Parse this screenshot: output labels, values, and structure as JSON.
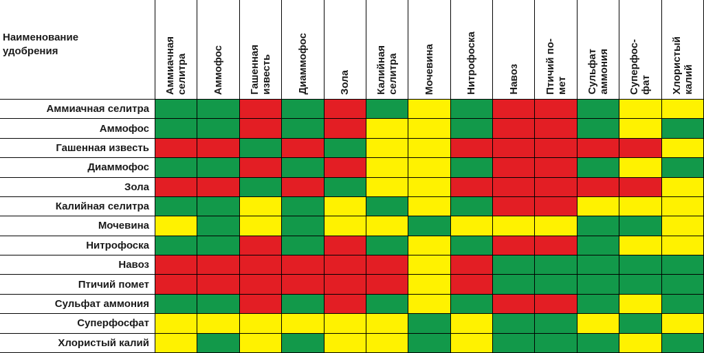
{
  "title_lines": [
    "Наименование",
    "удобрения"
  ],
  "columns": [
    "Аммиачная\nселитра",
    "Аммофос",
    "Гашенная\nизвесть",
    "Диаммофос",
    "Зола",
    "Калийная\nселитра",
    "Мочевина",
    "Нитрофоска",
    "Навоз",
    "Птичий по-\nмет",
    "Сульфат\nаммония",
    "Суперфос-\nфат",
    "Хлористый\nкалий"
  ],
  "rows": [
    "Аммиачная селитра",
    "Аммофос",
    "Гашенная известь",
    "Диаммофос",
    "Зола",
    "Калийная селитра",
    "Мочевина",
    "Нитрофоска",
    "Навоз",
    "Птичий помет",
    "Сульфат аммония",
    "Суперфосфат",
    "Хлористый калий"
  ],
  "colors": {
    "G": "#12994a",
    "R": "#e31e24",
    "Y": "#fff200"
  },
  "matrix": [
    [
      "G",
      "G",
      "R",
      "G",
      "R",
      "G",
      "Y",
      "G",
      "R",
      "R",
      "G",
      "Y",
      "Y"
    ],
    [
      "G",
      "G",
      "R",
      "G",
      "R",
      "Y",
      "Y",
      "G",
      "R",
      "R",
      "G",
      "Y",
      "G"
    ],
    [
      "R",
      "R",
      "G",
      "R",
      "G",
      "Y",
      "Y",
      "R",
      "R",
      "R",
      "R",
      "R",
      "Y"
    ],
    [
      "G",
      "G",
      "R",
      "G",
      "R",
      "Y",
      "Y",
      "G",
      "R",
      "R",
      "G",
      "Y",
      "G"
    ],
    [
      "R",
      "R",
      "G",
      "R",
      "G",
      "Y",
      "Y",
      "R",
      "R",
      "R",
      "R",
      "R",
      "Y"
    ],
    [
      "G",
      "G",
      "Y",
      "G",
      "Y",
      "G",
      "Y",
      "G",
      "R",
      "R",
      "Y",
      "Y",
      "Y"
    ],
    [
      "Y",
      "G",
      "Y",
      "G",
      "Y",
      "Y",
      "G",
      "Y",
      "Y",
      "Y",
      "G",
      "G",
      "Y"
    ],
    [
      "G",
      "G",
      "R",
      "G",
      "R",
      "G",
      "Y",
      "G",
      "R",
      "R",
      "G",
      "Y",
      "Y"
    ],
    [
      "R",
      "R",
      "R",
      "R",
      "R",
      "R",
      "Y",
      "R",
      "G",
      "G",
      "G",
      "G",
      "G"
    ],
    [
      "R",
      "R",
      "R",
      "R",
      "R",
      "R",
      "Y",
      "R",
      "G",
      "G",
      "G",
      "G",
      "G"
    ],
    [
      "G",
      "G",
      "R",
      "G",
      "R",
      "G",
      "Y",
      "G",
      "R",
      "R",
      "G",
      "Y",
      "G"
    ],
    [
      "Y",
      "Y",
      "Y",
      "Y",
      "Y",
      "Y",
      "G",
      "Y",
      "G",
      "G",
      "Y",
      "G",
      "Y"
    ],
    [
      "Y",
      "G",
      "Y",
      "G",
      "Y",
      "Y",
      "G",
      "Y",
      "G",
      "G",
      "G",
      "Y",
      "G"
    ]
  ]
}
